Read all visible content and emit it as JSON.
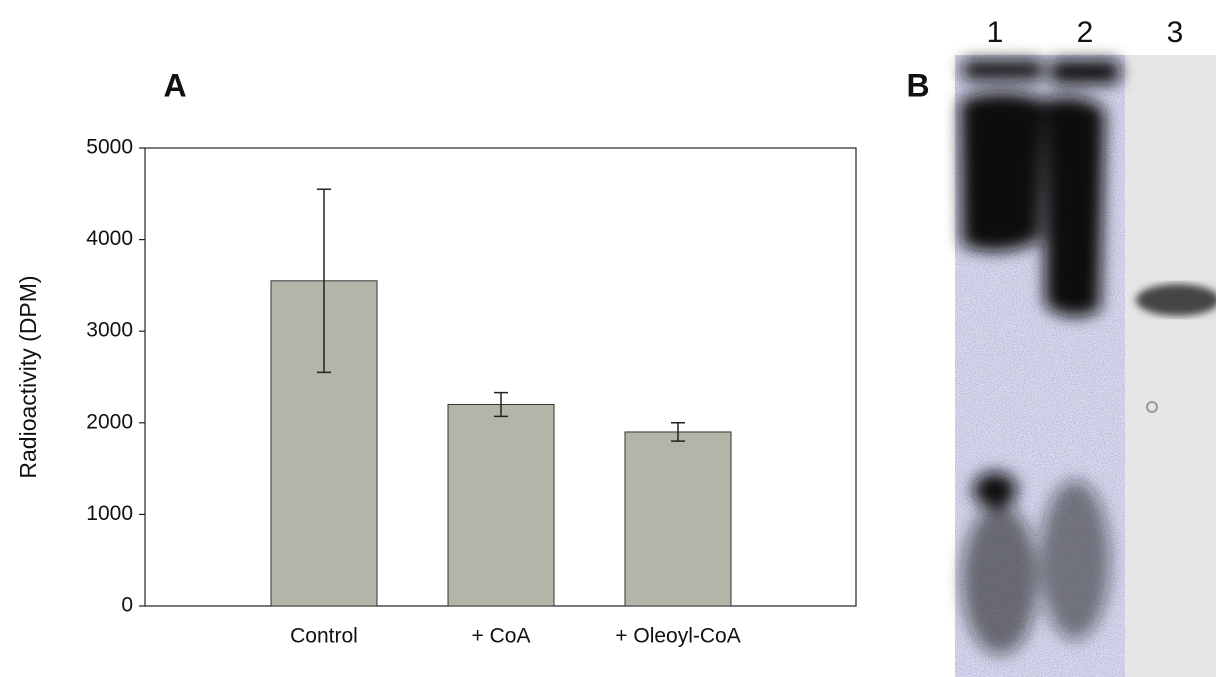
{
  "chart_data": {
    "type": "bar",
    "y_label": "Radioactivity (DPM)",
    "categories": [
      "Control",
      "+ CoA",
      "+ Oleoyl-CoA"
    ],
    "values": [
      3550,
      2200,
      1900
    ],
    "errors": [
      1000,
      130,
      100
    ],
    "color": "#b4b4a8",
    "ylim": [
      0,
      5000
    ],
    "yticks": [
      0,
      1000,
      2000,
      3000,
      4000,
      5000
    ],
    "panel_labels": [
      "A",
      "B"
    ],
    "lane_labels": [
      "1",
      "2",
      "3"
    ]
  }
}
